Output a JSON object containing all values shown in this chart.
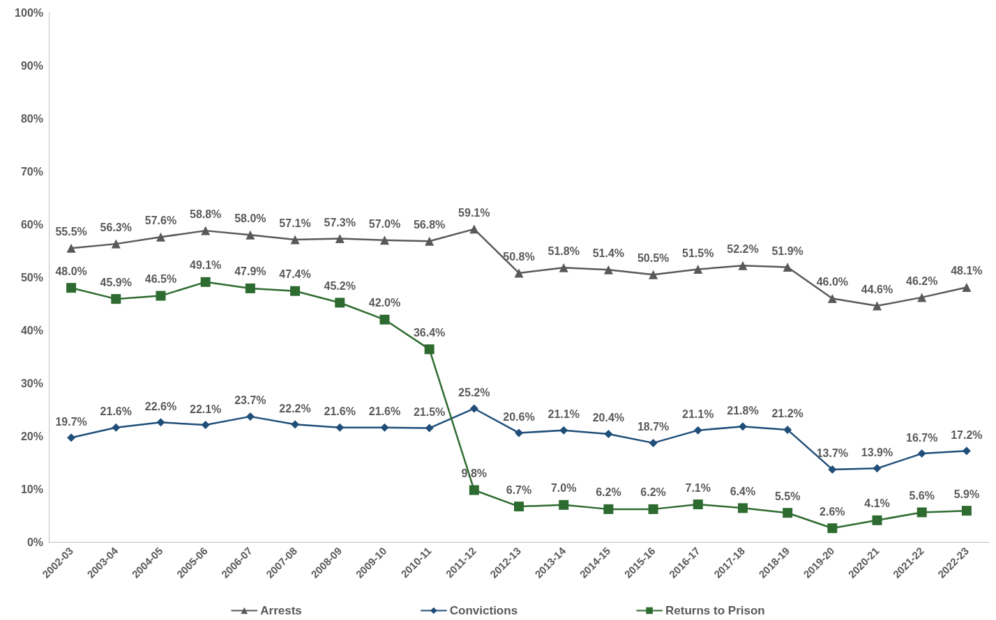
{
  "chart_data": {
    "type": "line",
    "categories": [
      "2002-03",
      "2003-04",
      "2004-05",
      "2005-06",
      "2006-07",
      "2007-08",
      "2008-09",
      "2009-10",
      "2010-11",
      "2011-12",
      "2012-13",
      "2013-14",
      "2014-15",
      "2015-16",
      "2016-17",
      "2017-18",
      "2018-19",
      "2019-20",
      "2020-21",
      "2021-22",
      "2022-23"
    ],
    "series": [
      {
        "name": "Arrests",
        "color": "#595959",
        "marker": "triangle",
        "values": [
          55.5,
          56.3,
          57.6,
          58.8,
          58.0,
          57.1,
          57.3,
          57.0,
          56.8,
          59.1,
          50.8,
          51.8,
          51.4,
          50.5,
          51.5,
          52.2,
          51.9,
          46.0,
          44.6,
          46.2,
          48.1
        ],
        "value_labels": [
          "55.5%",
          "56.3%",
          "57.6%",
          "58.8%",
          "58.0%",
          "57.1%",
          "57.3%",
          "57.0%",
          "56.8%",
          "59.1%",
          "50.8%",
          "51.8%",
          "51.4%",
          "50.5%",
          "51.5%",
          "52.2%",
          "51.9%",
          "46.0%",
          "44.6%",
          "46.2%",
          "48.1%"
        ]
      },
      {
        "name": "Convictions",
        "color": "#1f4e79",
        "marker": "diamond",
        "values": [
          19.7,
          21.6,
          22.6,
          22.1,
          23.7,
          22.2,
          21.6,
          21.6,
          21.5,
          25.2,
          20.6,
          21.1,
          20.4,
          18.7,
          21.1,
          21.8,
          21.2,
          13.7,
          13.9,
          16.7,
          17.2
        ],
        "value_labels": [
          "19.7%",
          "21.6%",
          "22.6%",
          "22.1%",
          "23.7%",
          "22.2%",
          "21.6%",
          "21.6%",
          "21.5%",
          "25.2%",
          "20.6%",
          "21.1%",
          "20.4%",
          "18.7%",
          "21.1%",
          "21.8%",
          "21.2%",
          "13.7%",
          "13.9%",
          "16.7%",
          "17.2%"
        ]
      },
      {
        "name": "Returns to Prison",
        "color": "#2e6b30",
        "marker": "square",
        "values": [
          48.0,
          45.9,
          46.5,
          49.1,
          47.9,
          47.4,
          45.2,
          42.0,
          36.4,
          9.8,
          6.7,
          7.0,
          6.2,
          6.2,
          7.1,
          6.4,
          5.5,
          2.6,
          4.1,
          5.6,
          5.9
        ],
        "value_labels": [
          "48.0%",
          "45.9%",
          "46.5%",
          "49.1%",
          "47.9%",
          "47.4%",
          "45.2%",
          "42.0%",
          "36.4%",
          "9.8%",
          "6.7%",
          "7.0%",
          "6.2%",
          "6.2%",
          "7.1%",
          "6.4%",
          "5.5%",
          "2.6%",
          "4.1%",
          "5.6%",
          "5.9%"
        ]
      }
    ],
    "ylim": [
      0,
      100
    ],
    "yticks": [
      {
        "value": 0,
        "label": "0%"
      },
      {
        "value": 10,
        "label": "10%"
      },
      {
        "value": 20,
        "label": "20%"
      },
      {
        "value": 30,
        "label": "30%"
      },
      {
        "value": 40,
        "label": "40%"
      },
      {
        "value": 50,
        "label": "50%"
      },
      {
        "value": 60,
        "label": "60%"
      },
      {
        "value": 70,
        "label": "70%"
      },
      {
        "value": 80,
        "label": "80%"
      },
      {
        "value": 90,
        "label": "90%"
      },
      {
        "value": 100,
        "label": "100%"
      }
    ],
    "grid": false,
    "legend": "bottom"
  }
}
